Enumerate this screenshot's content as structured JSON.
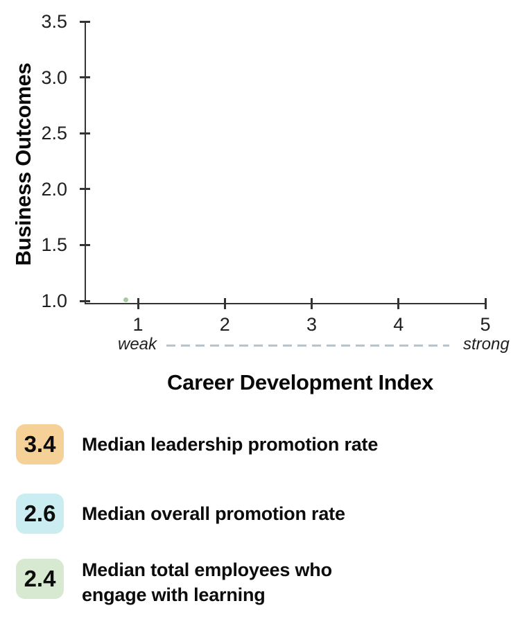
{
  "chart_data": {
    "type": "scatter",
    "title": "",
    "xlabel": "Career Development Index",
    "ylabel": "Business Outcomes",
    "xticks": [
      "1",
      "2",
      "3",
      "4",
      "5"
    ],
    "yticks": [
      "3.5",
      "3.0",
      "2.5",
      "2.0",
      "1.5",
      "1.0"
    ],
    "xlim": [
      0.38,
      5
    ],
    "ylim": [
      1.0,
      3.5
    ],
    "grid": false,
    "legend_position": "below",
    "points": [
      {
        "x": 0.86,
        "y": 1.01,
        "color": "#a7c9a0",
        "series": "Median total employees who engage with learning"
      }
    ],
    "x_axis_annotation": {
      "left": "weak",
      "right": "strong",
      "line_style": "dashed",
      "line_color": "#b2c5d1"
    }
  },
  "legend": {
    "items": [
      {
        "value": "3.4",
        "color": "#f5d097",
        "lines": [
          "Median leadership promotion rate"
        ]
      },
      {
        "value": "2.6",
        "color": "#c9edf0",
        "lines": [
          "Median overall promotion rate"
        ]
      },
      {
        "value": "2.4",
        "color": "#d7e9d0",
        "lines": [
          "Median total employees who",
          "engage with learning"
        ]
      }
    ]
  },
  "colors": {
    "axis": "#333333",
    "text": "#111111",
    "background": "#ffffff"
  }
}
